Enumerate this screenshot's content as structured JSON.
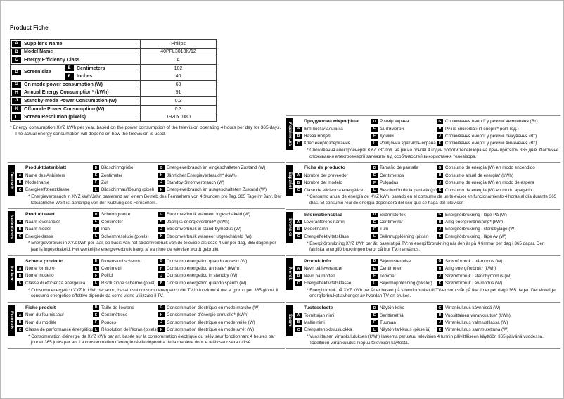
{
  "page_title": "Product Fiche",
  "fiche_table": {
    "rows": [
      {
        "key": "A",
        "label": "Supplier's Name",
        "value": "Philips"
      },
      {
        "key": "B",
        "label": "Model Name",
        "value": "40PFL3018K/12"
      },
      {
        "key": "C",
        "label": "Energy Efficiency Class",
        "value": "A"
      },
      {
        "key": "D",
        "label": "Screen size",
        "sub": [
          {
            "key": "E",
            "label": "Centimeters",
            "value": "102"
          },
          {
            "key": "F",
            "label": "Inches",
            "value": "40"
          }
        ]
      },
      {
        "key": "G",
        "label": "On mode power consumption (W)",
        "value": "63"
      },
      {
        "key": "H",
        "label": "Annual Energy Consumption* (kWh)",
        "value": "91"
      },
      {
        "key": "J",
        "label": "Standby-mode Power Consumption (W)",
        "value": "0.3"
      },
      {
        "key": "K",
        "label": "Off-mode Power Consumption (W)",
        "value": "0.3"
      },
      {
        "key": "L",
        "label": "Screen Resolution (pixels)",
        "value": "1920x1080"
      }
    ],
    "footnote_line1": "* Energy consumption XYZ kWh per year, based on the power consumption of the television operating 4 hours per day for 365 days.",
    "footnote_line2": "The actual energy consumption will depend on how the television is used."
  },
  "sections": {
    "left": [
      {
        "language": "Deutsch",
        "header": "Produktdatenblatt",
        "col1": [
          {
            "key": "A",
            "label": "Name des Anbieters"
          },
          {
            "key": "B",
            "label": "Modellname"
          },
          {
            "key": "C",
            "label": "Energieeffizienzklasse"
          }
        ],
        "col2": [
          {
            "key": "D",
            "label": "Bildschirmgröße"
          },
          {
            "key": "E",
            "label": "Zentimeter"
          },
          {
            "key": "F",
            "label": "Zoll"
          },
          {
            "key": "L",
            "label": "Bildschirmauflösung (pixel)"
          }
        ],
        "col3": [
          {
            "key": "G",
            "label": "Energieverbrauch im eingeschalteten Zustand (W)"
          },
          {
            "key": "H",
            "label": "Jährlicher Energieverbrauch* (kWh)"
          },
          {
            "key": "J",
            "label": "Standby-Stromverbrauch (W)"
          },
          {
            "key": "K",
            "label": "Energieverbrauch im ausgeschalteten Zustand (W)"
          }
        ],
        "footnote": "* Energieverbrauch in XYZ kWh/Jahr, basierend auf einem Betrieb des Fernsehers von 4 Stunden pro Tag, 365 Tage im Jahr. Der tatsächliche Wert ist abhängig von der Nutzung des Fernsehers."
      },
      {
        "language": "Nederlands",
        "header": "Productkaart",
        "col1": [
          {
            "key": "A",
            "label": "Naam leverancier"
          },
          {
            "key": "B",
            "label": "Naam model"
          },
          {
            "key": "C",
            "label": "Energieklasse"
          }
        ],
        "col2": [
          {
            "key": "D",
            "label": "Schermgrootte"
          },
          {
            "key": "E",
            "label": "Centimeter"
          },
          {
            "key": "F",
            "label": "Inch"
          },
          {
            "key": "L",
            "label": "Schermresolutie (pixels)"
          }
        ],
        "col3": [
          {
            "key": "G",
            "label": "Stroomverbruik wanneer ingeschakeld (W)"
          },
          {
            "key": "H",
            "label": "Jaarlijks energieverbruik* (kWh)"
          },
          {
            "key": "J",
            "label": "Stroomverbruik in stand-bymodus (W)"
          },
          {
            "key": "K",
            "label": "Stroomverbruik wanneer uitgeschakeld (W)"
          }
        ],
        "footnote": "* Energieverbruik in XYZ kWh per jaar, op basis van het stroomverbruik van de televisie als deze 4 uur per dag, 365 dagen per jaar is ingeschakeld. Het werkelijke energieverbruik hangt af van hoe de televisie wordt gebruikt."
      },
      {
        "language": "Italiano",
        "header": "Scheda prodotto",
        "col1": [
          {
            "key": "A",
            "label": "Nome fornitore"
          },
          {
            "key": "B",
            "label": "Nome modello"
          },
          {
            "key": "C",
            "label": "Classe di efficienza energetica"
          }
        ],
        "col2": [
          {
            "key": "D",
            "label": "Dimensioni schermo"
          },
          {
            "key": "E",
            "label": "Centimetri"
          },
          {
            "key": "F",
            "label": "Pollici"
          },
          {
            "key": "L",
            "label": "Risoluzione schermo (pixel)"
          }
        ],
        "col3": [
          {
            "key": "G",
            "label": "Consumo energetico quando acceso (W)"
          },
          {
            "key": "H",
            "label": "Consumo energetico annuale* (kWh)"
          },
          {
            "key": "J",
            "label": "Consumo energetico in standby (W)"
          },
          {
            "key": "K",
            "label": "Consumo energetico quando spento (W)"
          }
        ],
        "footnote": "* Consumo energetico XYZ in kWh per anno, basato sul consumo energetico del TV in funzione 4 ore al giorno per 365 giorni. Il consumo energetico effettivo dipende da come viene utilizzato il TV."
      },
      {
        "language": "Français",
        "header": "Fiche produit",
        "col1": [
          {
            "key": "A",
            "label": "Nom du fournisseur"
          },
          {
            "key": "B",
            "label": "Nom du modèle"
          },
          {
            "key": "C",
            "label": "Classe de performance énergétique"
          }
        ],
        "col2": [
          {
            "key": "D",
            "label": "Taille de l'écrane"
          },
          {
            "key": "E",
            "label": "Centimètrese"
          },
          {
            "key": "F",
            "label": "Pouces"
          },
          {
            "key": "L",
            "label": "Résolution de l'écran (pixels)"
          }
        ],
        "col3": [
          {
            "key": "G",
            "label": "Consommation électrique en mode marche (W)"
          },
          {
            "key": "H",
            "label": "Consommation d'énergie annuelle* (kWh)"
          },
          {
            "key": "J",
            "label": "Consommation électrique en mode veille (W)"
          },
          {
            "key": "K",
            "label": "Consommation électrique en mode arrêt (W)"
          }
        ],
        "footnote": "* Consommation d'énergie de XYZ kWh par an, basée sur la consommation électrique du téléviseur fonctionnant 4 heures par jour et 365 jours par an. La consommation d'énergie réelle dépendra de la manière dont le téléviseur sera utilisé."
      }
    ],
    "right": [
      {
        "language": "Українська",
        "header": "Продуктова мікрофіша",
        "col1": [
          {
            "key": "A",
            "label": "Ім'я постачальника"
          },
          {
            "key": "B",
            "label": "Назва моделі"
          },
          {
            "key": "C",
            "label": "Клас енергозберігання"
          }
        ],
        "col2": [
          {
            "key": "D",
            "label": "Розмір екрана"
          },
          {
            "key": "E",
            "label": "сантиметри"
          },
          {
            "key": "F",
            "label": "дюйми"
          },
          {
            "key": "L",
            "label": "Роздільна здатність екрана (піксел)"
          }
        ],
        "col3": [
          {
            "key": "G",
            "label": "Споживання енергії у режимі ввімкнення (Вт)"
          },
          {
            "key": "H",
            "label": "Річне споживання енергії* (кВт-год.)"
          },
          {
            "key": "J",
            "label": "Споживання енергії у режимі очікування (Вт)"
          },
          {
            "key": "K",
            "label": "Споживання енергії у режимі вимкнення (Вт)"
          }
        ],
        "footnote": "* Споживання електроенергії XYZ кВт-год. на рік на основі 4 годин роботи телевізора на день протягом 365 днів. Фактичне споживання електроенергії залежить від особливостей використання телевізора."
      },
      {
        "language": "Español",
        "header": "Ficha de producto",
        "col1": [
          {
            "key": "A",
            "label": "Nombre del proveedor"
          },
          {
            "key": "B",
            "label": "Nombre del modelo"
          },
          {
            "key": "C",
            "label": "Clase de eficiencia energética"
          }
        ],
        "col2": [
          {
            "key": "D",
            "label": "Tamaño de pantalla"
          },
          {
            "key": "E",
            "label": "Centímetros"
          },
          {
            "key": "F",
            "label": "Pulgadas"
          },
          {
            "key": "L",
            "label": "Resolución de la pantalla (píxeles)"
          }
        ],
        "col3": [
          {
            "key": "G",
            "label": "Consumo de energía (W) en modo encendido"
          },
          {
            "key": "H",
            "label": "Consumo anual de energía* (kWh)"
          },
          {
            "key": "J",
            "label": "Consumo de energía (W) en modo de espera"
          },
          {
            "key": "K",
            "label": "Consumo de energía (W) en modo apagado"
          }
        ],
        "footnote": "* Consumo anual de energía de XYZ kWh, basado en el consumo de un televisor en funcionamiento 4 horas al día durante 365 días. El consumo real de energía dependerá del uso que se haga del televisor."
      },
      {
        "language": "Svenska",
        "header": "Informationsblad",
        "col1": [
          {
            "key": "A",
            "label": "Leverantörens namn"
          },
          {
            "key": "B",
            "label": "Modellnamn"
          },
          {
            "key": "C",
            "label": "Energieffektivitetsklass"
          }
        ],
        "col2": [
          {
            "key": "D",
            "label": "Skärmstorlek"
          },
          {
            "key": "E",
            "label": "Centimetrar"
          },
          {
            "key": "F",
            "label": "Tum"
          },
          {
            "key": "L",
            "label": "Skärmupplösning (pixlar)"
          }
        ],
        "col3": [
          {
            "key": "G",
            "label": "Energiförbrukning i läge På (W)"
          },
          {
            "key": "H",
            "label": "Årlig energiförbrukning* (kWh)"
          },
          {
            "key": "J",
            "label": "Energiförbrukning i standbyläge (W)"
          },
          {
            "key": "K",
            "label": "Energiförbrukning i läge Av (W)"
          }
        ],
        "footnote": "* Energiförbrukning XYZ kWh per år, baserat på TV:ns energiförbrukning när den är på 4 timmar per dag i 365 dagar. Den faktiska energiförbrukningen beror på hur TV:n används."
      },
      {
        "language": "Norsk",
        "header": "Produktinfo",
        "col1": [
          {
            "key": "A",
            "label": "Navn på leverandør"
          },
          {
            "key": "B",
            "label": "Navn på modell"
          },
          {
            "key": "C",
            "label": "Energieffektivitetsklasse"
          }
        ],
        "col2": [
          {
            "key": "D",
            "label": "Skjermstørrelse"
          },
          {
            "key": "E",
            "label": "Centimeter"
          },
          {
            "key": "F",
            "label": "Tommer"
          },
          {
            "key": "L",
            "label": "Skjermoppløsning (piksler)"
          }
        ],
        "col3": [
          {
            "key": "G",
            "label": "Strømforbruk i på-modus (W)"
          },
          {
            "key": "H",
            "label": "Årlig energiforbruk* (kWh)"
          },
          {
            "key": "J",
            "label": "Strømforbruk i standbymodus (W)"
          },
          {
            "key": "K",
            "label": "Strømforbruk i av-modus (W)"
          }
        ],
        "footnote": "* Energiforbruk på XYZ kWh per år er basert på strømforbruket til TV-er som står på fire timer per dag i 365 dager. Det virkelige energiforbruket avhenger av hvordan TV-en brukes."
      },
      {
        "language": "Suomi",
        "header": "Tuoteseloste",
        "col1": [
          {
            "key": "A",
            "label": "Toimittajan nimi"
          },
          {
            "key": "B",
            "label": "Mallin nimi"
          },
          {
            "key": "C",
            "label": "Energiatehokkuusluokka"
          }
        ],
        "col2": [
          {
            "key": "D",
            "label": "Näytön koko"
          },
          {
            "key": "E",
            "label": "Senttimetriä"
          },
          {
            "key": "F",
            "label": "Tuumaa"
          },
          {
            "key": "L",
            "label": "Näytön tarkkuus (pikseliä)"
          }
        ],
        "col3": [
          {
            "key": "G",
            "label": "Virrankulutus käynnissä (W)"
          },
          {
            "key": "H",
            "label": "Vuosittainen virrankulutus* (kWh)"
          },
          {
            "key": "J",
            "label": "Virrankulutus valmiustilassa (W)"
          },
          {
            "key": "K",
            "label": "Virrankulutus sammutettuna (W)"
          }
        ],
        "footnote": "* Vuosittaisen virrankulutuksen (kWh) laskenta perustuu television 4 tunnin päivittäiseen käyttöön 365 päivänä vuodessa. Todellinen virrankulutus riippuu television käytöstä."
      }
    ]
  }
}
